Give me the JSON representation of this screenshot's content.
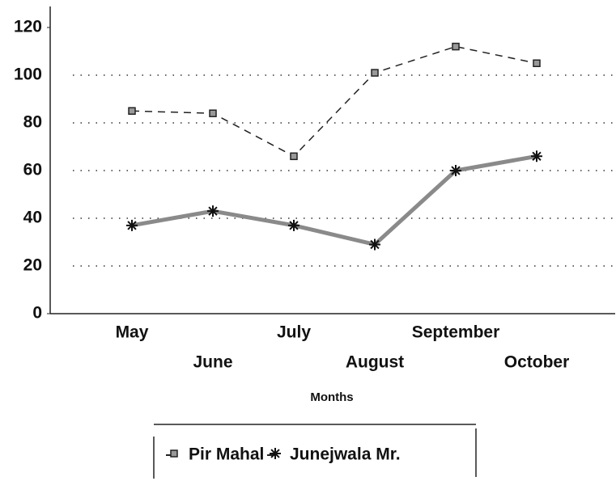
{
  "chart_data": {
    "type": "line",
    "x_label": "Months",
    "categories": [
      "May",
      "June",
      "July",
      "August",
      "September",
      "October"
    ],
    "series": [
      {
        "name": "Pir Mahal",
        "color": "#222222",
        "values": [
          85,
          84,
          66,
          101,
          112,
          105
        ]
      },
      {
        "name": "Junejwala Mr.",
        "color": "#8a8a8a",
        "values": [
          37,
          43,
          37,
          29,
          60,
          66
        ]
      }
    ],
    "ylim": [
      0,
      120
    ],
    "yticks": [
      0,
      20,
      40,
      60,
      80,
      100,
      120
    ],
    "grid": true,
    "legend": "bottom"
  }
}
